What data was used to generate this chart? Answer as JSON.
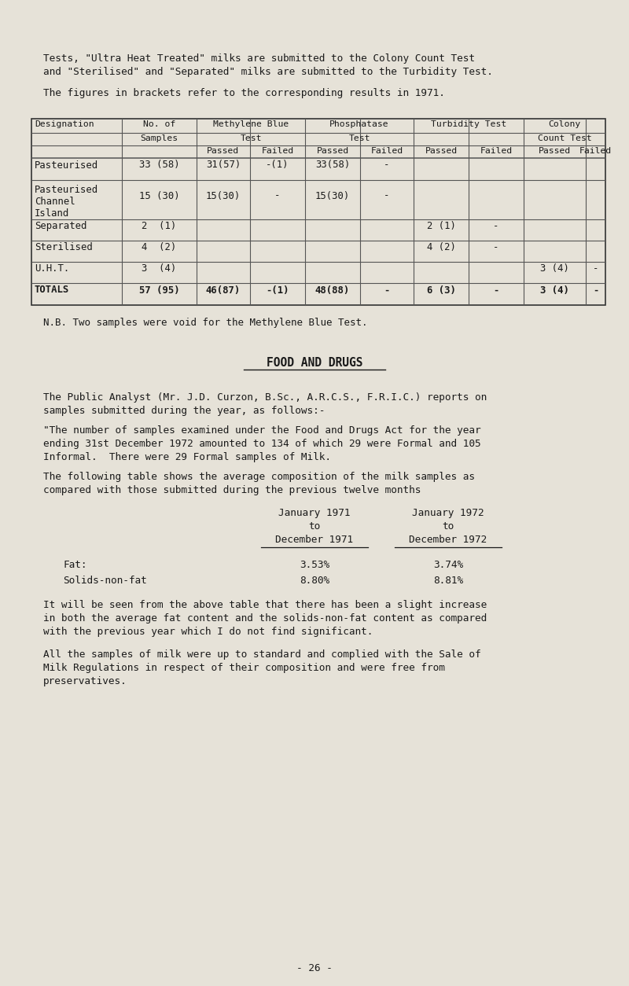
{
  "bg_color": "#e6e2d8",
  "text_color": "#1a1a1a",
  "intro_lines": [
    "Tests, \"Ultra Heat Treated\" milks are submitted to the Colony Count Test",
    "and \"Sterilised\" and \"Separated\" milks are submitted to the Turbidity Test.",
    "",
    "The figures in brackets refer to the corresponding results in 1971."
  ],
  "table_rows": [
    [
      "Pasteurised",
      "33 (58)",
      "31(57)",
      "-(1)",
      "33(58)",
      "-",
      "",
      "",
      "",
      ""
    ],
    [
      "Pasteurised\nChannel\nIsland",
      "15 (30)",
      "15(30)",
      "-",
      "15(30)",
      "-",
      "",
      "",
      "",
      ""
    ],
    [
      "Separated",
      "2  (1)",
      "",
      "",
      "",
      "",
      "2 (1)",
      "-",
      "",
      ""
    ],
    [
      "Sterilised",
      "4  (2)",
      "",
      "",
      "",
      "",
      "4 (2)",
      "-",
      "",
      ""
    ],
    [
      "U.H.T.",
      "3  (4)",
      "",
      "",
      "",
      "",
      "",
      "",
      "3 (4)",
      "-"
    ],
    [
      "TOTALS",
      "57 (95)",
      "46(87)",
      "-(1)",
      "48(88)",
      "-",
      "6 (3)",
      "-",
      "3 (4)",
      "-"
    ]
  ],
  "nb_text": "N.B. Two samples were void for the Methylene Blue Test.",
  "food_drugs_title": "FOOD AND DRUGS",
  "analyst_line1": "The Public Analyst (Mr. J.D. Curzon, B.Sc., A.R.C.S., F.R.I.C.) reports on",
  "analyst_line2": "samples submitted during the year, as follows:-",
  "number_line1": "\"The number of samples examined under the Food and Drugs Act for the year",
  "number_line2": "ending 31st December 1972 amounted to 134 of which 29 were Formal and 105",
  "number_line3": "Informal.  There were 29 Formal samples of Milk.",
  "follow_line1": "The following table shows the average composition of the milk samples as",
  "follow_line2": "compared with those submitted during the previous twelve months",
  "comp_fat_label": "Fat:",
  "comp_snf_label": "Solids-non-fat",
  "comp_fat_1971": "3.53%",
  "comp_fat_1972": "3.74%",
  "comp_snf_1971": "8.80%",
  "comp_snf_1972": "8.81%",
  "increase_line1": "It will be seen from the above table that there has been a slight increase",
  "increase_line2": "in both the average fat content and the solids-non-fat content as compared",
  "increase_line3": "with the previous year which I do not find significant.",
  "all_line1": "All the samples of milk were up to standard and complied with the Sale of",
  "all_line2": "Milk Regulations in respect of their composition and were free from",
  "all_line3": "preservatives.",
  "page_number": "- 26 -"
}
